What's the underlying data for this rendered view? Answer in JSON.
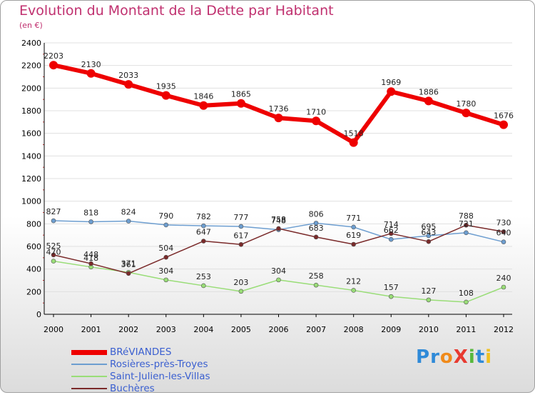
{
  "header": {
    "title": "Evolution du Montant de la Dette par Habitant",
    "subtitle": "(en €)"
  },
  "colors": {
    "title": "#c0306f",
    "axis_text": "#000000",
    "legend_text": "#3a5fd0",
    "grid": "#e0e0e0"
  },
  "logo": {
    "text": "ProXiti",
    "letters": [
      {
        "char": "P",
        "color": "#2f8ad8"
      },
      {
        "char": "r",
        "color": "#2f8ad8"
      },
      {
        "char": "o",
        "color": "#f08a1a"
      },
      {
        "char": "X",
        "color": "#e83a30"
      },
      {
        "char": "i",
        "color": "#56b83c"
      },
      {
        "char": "t",
        "color": "#2f8ad8"
      },
      {
        "char": "i",
        "color": "#f0c020"
      }
    ]
  },
  "chart_data": {
    "type": "line",
    "title": "Evolution du Montant de la Dette par Habitant",
    "subtitle": "(en €)",
    "xlabel": "",
    "ylabel": "",
    "ylim": [
      0,
      2400
    ],
    "y_ticks": [
      0,
      200,
      400,
      600,
      800,
      1000,
      1200,
      1400,
      1600,
      1800,
      2000,
      2200,
      2400
    ],
    "grid": true,
    "legend_position": "bottom-left",
    "categories": [
      "2000",
      "2001",
      "2002",
      "2003",
      "2004",
      "2005",
      "2006",
      "2007",
      "2008",
      "2009",
      "2010",
      "2011",
      "2012"
    ],
    "series": [
      {
        "name": "BRéVIANDES",
        "color": "#ee0000",
        "values": [
          2203,
          2130,
          2033,
          1935,
          1846,
          1865,
          1736,
          1710,
          1518,
          1969,
          1886,
          1780,
          1676
        ]
      },
      {
        "name": "Rosières-près-Troyes",
        "color": "#6d9ed0",
        "values": [
          827,
          818,
          824,
          790,
          782,
          777,
          748,
          806,
          771,
          662,
          695,
          721,
          640
        ]
      },
      {
        "name": "Saint-Julien-les-Villas",
        "color": "#99dd77",
        "values": [
          470,
          418,
          371,
          304,
          253,
          203,
          304,
          258,
          212,
          157,
          127,
          108,
          240
        ]
      },
      {
        "name": "Buchères",
        "color": "#7a2a2a",
        "values": [
          525,
          448,
          361,
          504,
          647,
          617,
          758,
          683,
          619,
          714,
          643,
          788,
          730
        ]
      }
    ]
  }
}
